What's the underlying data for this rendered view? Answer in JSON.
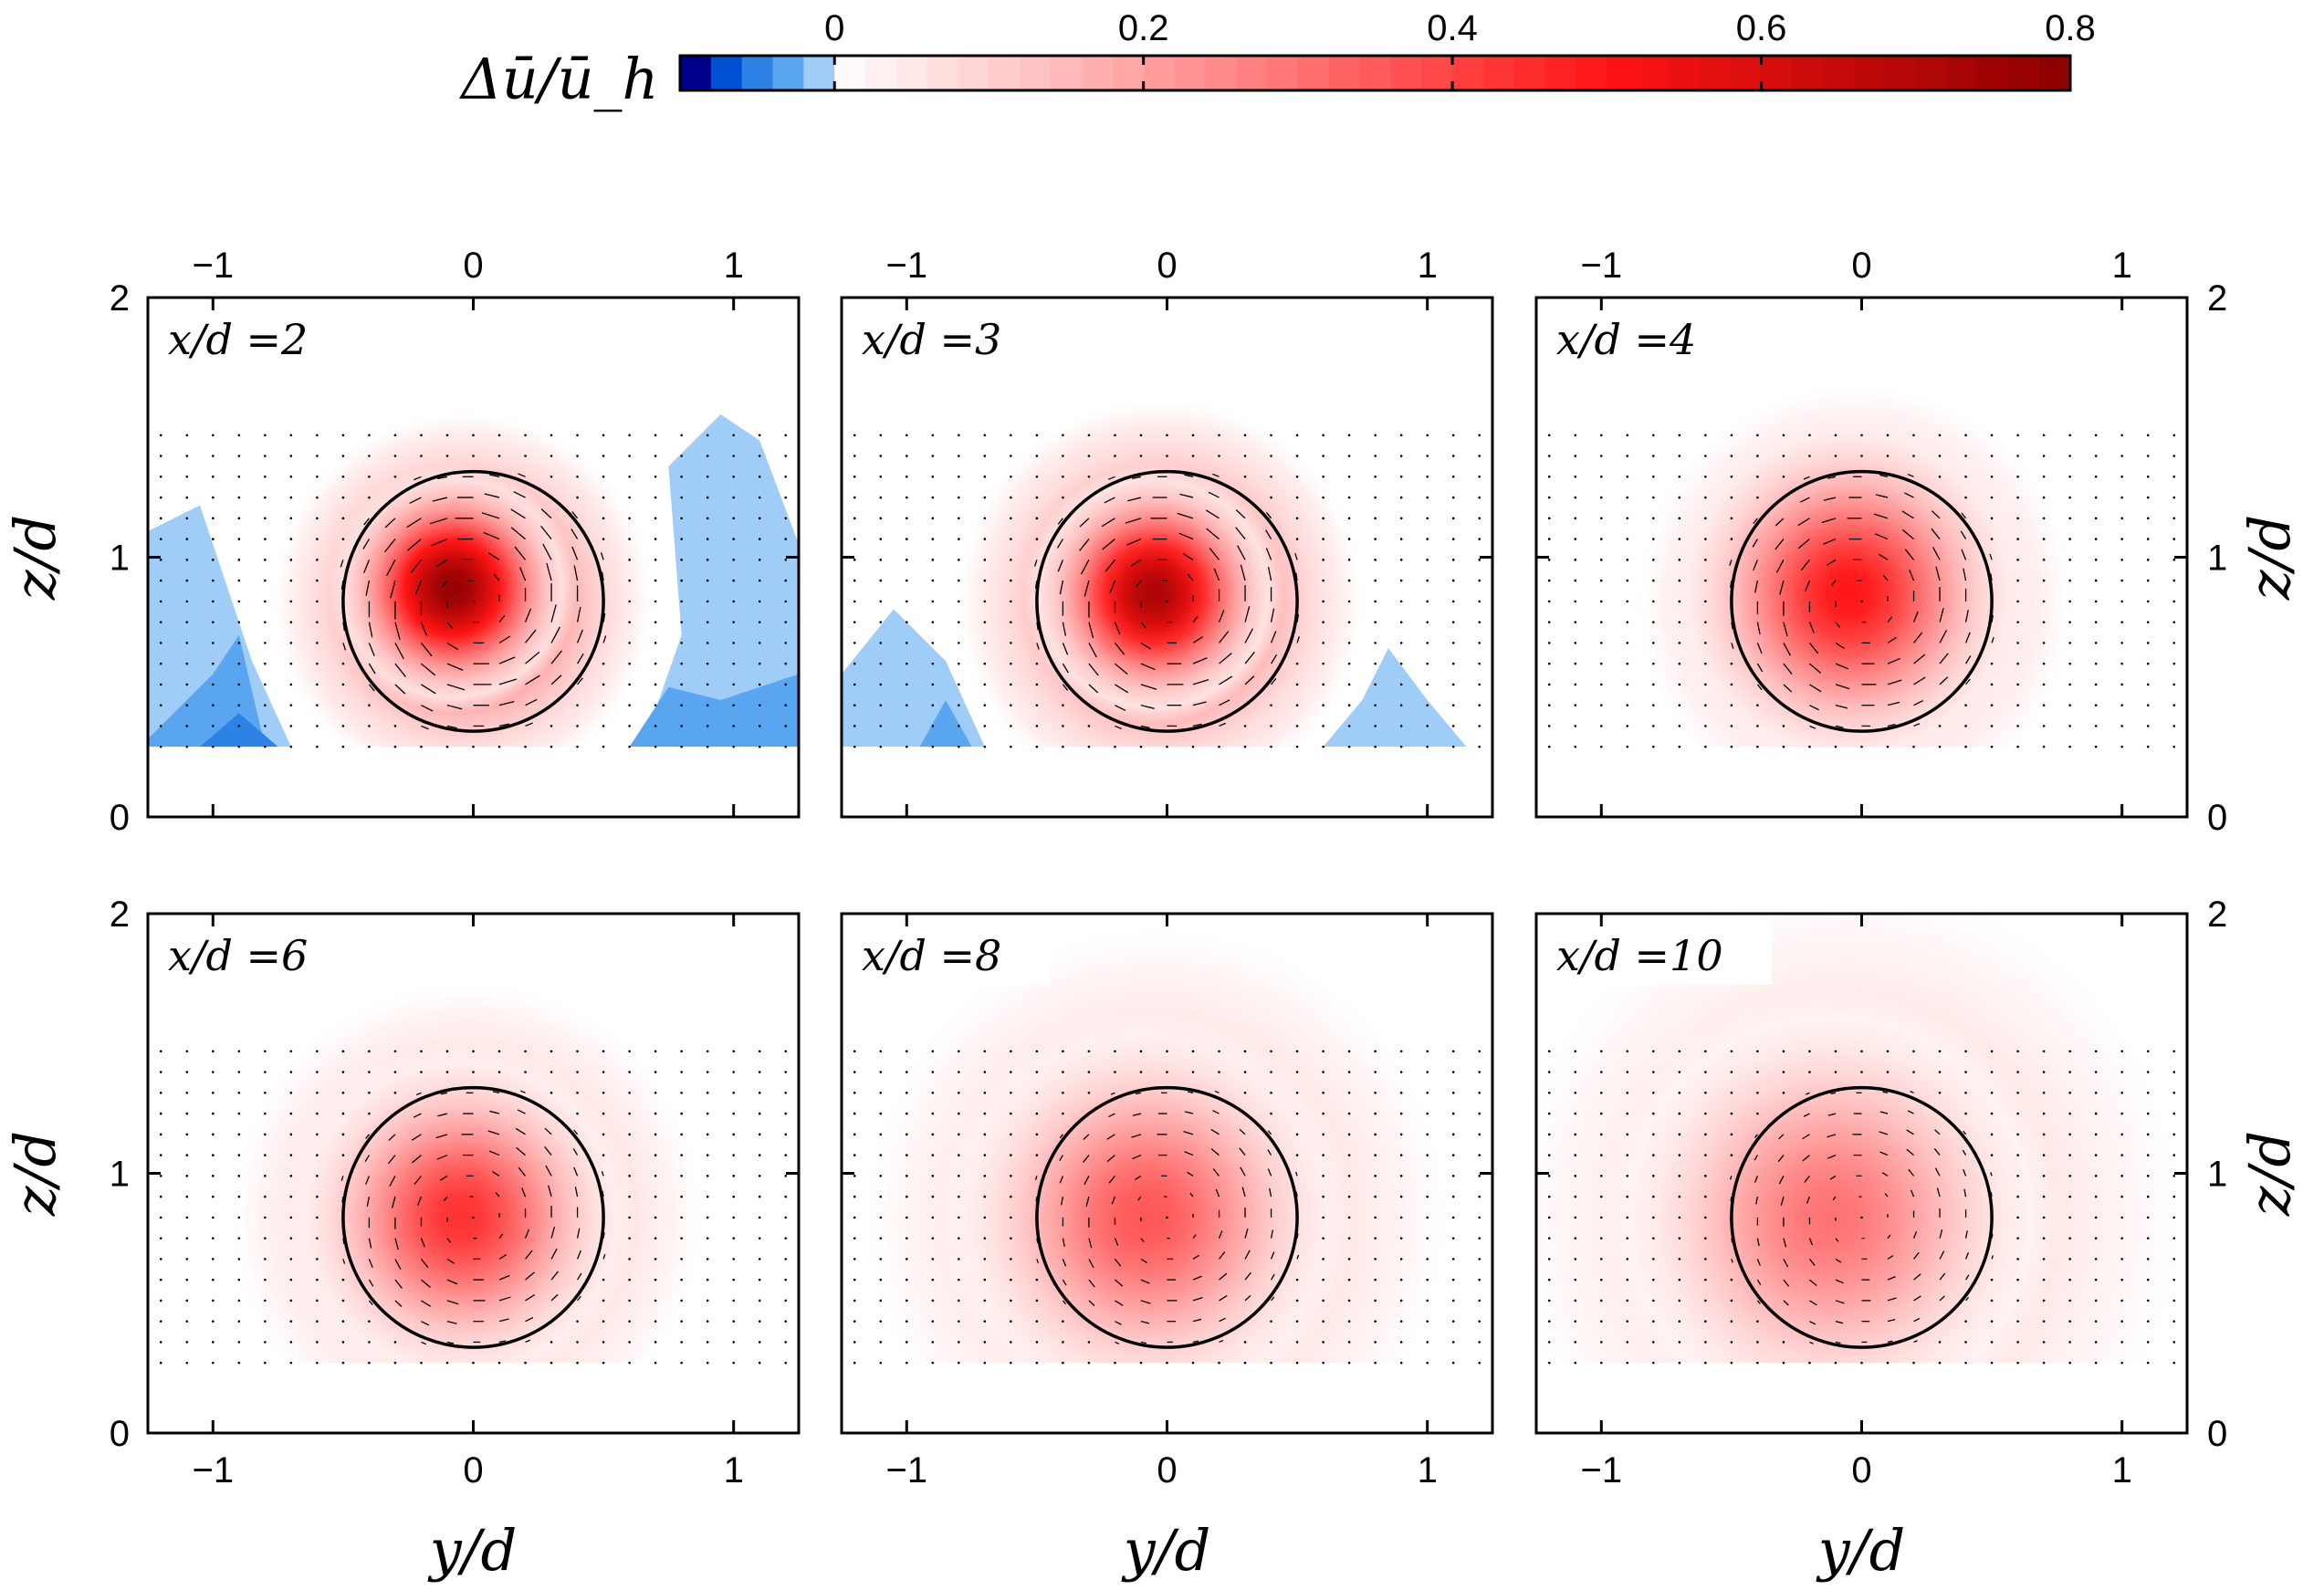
{
  "chart_data": {
    "type": "heatmap",
    "title": "",
    "colorbar": {
      "label": "Δū/ū_h",
      "ticks": [
        "0",
        "0.2",
        "0.4",
        "0.6",
        "0.8"
      ],
      "range": [
        -0.1,
        0.8
      ],
      "negative_colors": [
        "#00008c",
        "#0050d2",
        "#2d82e6",
        "#5aa5f0",
        "#a0cdf8"
      ],
      "positive_start": "#ffffff",
      "mid_color": "#ff1414",
      "max_color": "#8c0000"
    },
    "xlabel": "y/d",
    "ylabel": "z/d",
    "xlim": [
      -1.25,
      1.25
    ],
    "ylim": [
      0,
      2
    ],
    "xticks": [
      "−1",
      "0",
      "1"
    ],
    "yticks": [
      "0",
      "1",
      "2"
    ],
    "rotor": {
      "center_y": 0,
      "center_z": 0.83,
      "radius": 0.5
    },
    "measurement_floor_z": 0.27,
    "panels": [
      {
        "label": "x/d =2",
        "x_over_d": 2,
        "peak_deficit": 0.78,
        "core_sigma": 0.24,
        "wake_sigma": 0.42,
        "peak_offset_y": -0.08,
        "peak_offset_z": 0.05,
        "swirl_strength": 1.0,
        "negative_regions": true
      },
      {
        "label": "x/d =3",
        "x_over_d": 3,
        "peak_deficit": 0.72,
        "core_sigma": 0.25,
        "wake_sigma": 0.45,
        "peak_offset_y": -0.05,
        "peak_offset_z": 0.03,
        "swirl_strength": 0.9,
        "negative_regions": true
      },
      {
        "label": "x/d =4",
        "x_over_d": 4,
        "peak_deficit": 0.5,
        "core_sigma": 0.35,
        "wake_sigma": 0.48,
        "peak_offset_y": -0.05,
        "peak_offset_z": 0.03,
        "swirl_strength": 0.8,
        "negative_regions": false
      },
      {
        "label": "x/d =6",
        "x_over_d": 6,
        "peak_deficit": 0.44,
        "core_sigma": 0.34,
        "wake_sigma": 0.52,
        "peak_offset_y": -0.05,
        "peak_offset_z": 0.0,
        "swirl_strength": 0.65,
        "negative_regions": false
      },
      {
        "label": "x/d =8",
        "x_over_d": 8,
        "peak_deficit": 0.36,
        "core_sigma": 0.4,
        "wake_sigma": 0.64,
        "peak_offset_y": -0.08,
        "peak_offset_z": 0.0,
        "swirl_strength": 0.55,
        "negative_regions": false
      },
      {
        "label": "x/d =10",
        "x_over_d": 10,
        "peak_deficit": 0.3,
        "core_sigma": 0.44,
        "wake_sigma": 0.74,
        "peak_offset_y": -0.12,
        "peak_offset_z": 0.0,
        "swirl_strength": 0.5,
        "negative_regions": false
      }
    ]
  }
}
